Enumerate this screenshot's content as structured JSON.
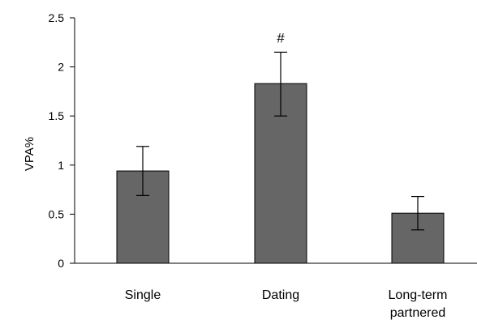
{
  "chart_data": {
    "type": "bar",
    "title": "",
    "xlabel": "",
    "ylabel": "VPA%",
    "ylim": [
      0,
      2.5
    ],
    "yticks": [
      0,
      0.5,
      1,
      1.5,
      2,
      2.5
    ],
    "ytick_labels": [
      "0",
      "0.5",
      "1",
      "1.5",
      "2",
      "2.5"
    ],
    "grid": false,
    "legend": "none",
    "categories": [
      {
        "lines": [
          "Single"
        ]
      },
      {
        "lines": [
          "Dating"
        ]
      },
      {
        "lines": [
          "Long-term",
          "partnered"
        ]
      }
    ],
    "values": [
      0.94,
      1.83,
      0.51
    ],
    "error_upper": [
      1.19,
      2.15,
      0.68
    ],
    "error_lower": [
      0.69,
      1.5,
      0.34
    ],
    "annotations": [
      "",
      "#",
      ""
    ],
    "bar_color": "#666666",
    "bar_edge_color": "#000000"
  }
}
